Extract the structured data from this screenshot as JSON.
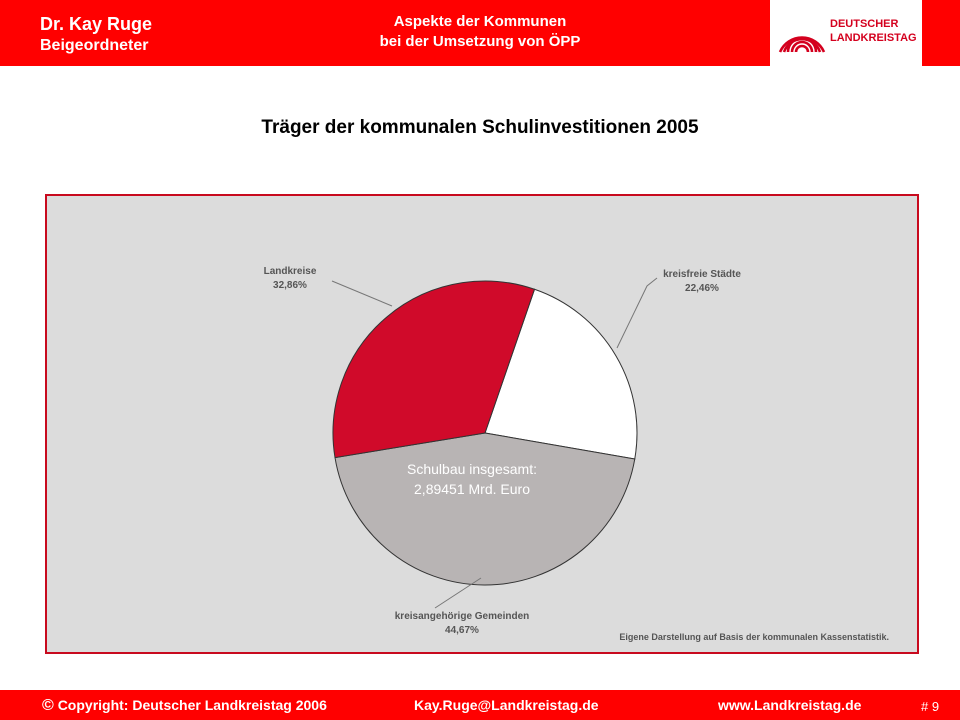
{
  "header": {
    "author_name": "Dr. Kay Ruge",
    "author_role": "Beigeordneter",
    "topic_line1": "Aspekte der Kommunen",
    "topic_line2": "bei der Umsetzung von ÖPP",
    "logo_line1": "DEUTSCHER",
    "logo_line2": "LANDKREISTAG"
  },
  "slide": {
    "title": "Träger der kommunalen Schulinvestitionen 2005"
  },
  "colors": {
    "brand_red": "#ff0000",
    "landkreise": "#d00a2a",
    "kreisfreie_staedte": "#ffffff",
    "kreisangehoerige_gemeinden": "#b8b4b4",
    "frame": "#c80a1e"
  },
  "chart_data": {
    "type": "pie",
    "title": "Träger der kommunalen Schulinvestitionen 2005",
    "slices": [
      {
        "label": "Landkreise",
        "value": 32.86,
        "display": "32,86%",
        "color": "#d00a2a"
      },
      {
        "label": "kreisfreie Städte",
        "value": 22.46,
        "display": "22,46%",
        "color": "#ffffff"
      },
      {
        "label": "kreisangehörige Gemeinden",
        "value": 44.67,
        "display": "44,67%",
        "color": "#b8b4b4"
      }
    ],
    "center_note_line1": "Schulbau insgesamt:",
    "center_note_line2": "2,89451 Mrd. Euro",
    "source_note": "Eigene Darstellung auf Basis  der kommunalen Kassenstatistik."
  },
  "footer": {
    "copyright_symbol": "©",
    "copyright": "Copyright: Deutscher Landkreistag 2006",
    "email": "Kay.Ruge@Landkreistag.de",
    "website": "www.Landkreistag.de",
    "page": "# 9"
  }
}
